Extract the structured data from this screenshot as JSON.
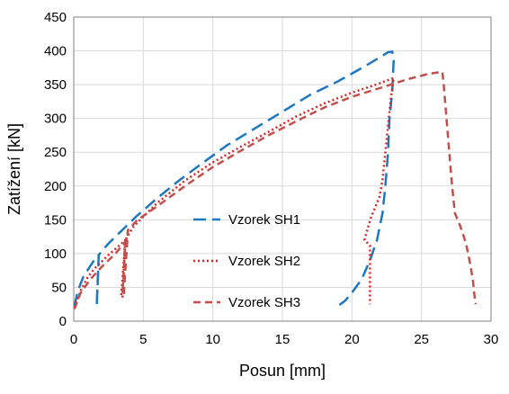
{
  "chart_data": {
    "type": "line",
    "title": "",
    "xlabel": "Posun [mm]",
    "ylabel": "Zatížení [kN]",
    "xlim": [
      0,
      30
    ],
    "ylim": [
      0,
      450
    ],
    "xticks": [
      0,
      5,
      10,
      15,
      20,
      25,
      30
    ],
    "yticks": [
      0,
      50,
      100,
      150,
      200,
      250,
      300,
      350,
      400,
      450
    ],
    "grid": true,
    "legend_position": "center-left",
    "series": [
      {
        "name": "Vzorek SH1",
        "color": "#1f77c0",
        "dash": "dashed-long",
        "points": [
          [
            0.05,
            22
          ],
          [
            0.3,
            45
          ],
          [
            0.7,
            66
          ],
          [
            1.2,
            82
          ],
          [
            1.65,
            96
          ],
          [
            1.8,
            98
          ],
          [
            1.75,
            70
          ],
          [
            1.7,
            45
          ],
          [
            1.65,
            22
          ],
          [
            1.65,
            22
          ],
          [
            1.8,
            98
          ],
          [
            2.5,
            115
          ],
          [
            3.5,
            135
          ],
          [
            4.5,
            155
          ],
          [
            6,
            182
          ],
          [
            7.5,
            207
          ],
          [
            9,
            230
          ],
          [
            11,
            260
          ],
          [
            13,
            285
          ],
          [
            15,
            310
          ],
          [
            17,
            335
          ],
          [
            19,
            355
          ],
          [
            21,
            378
          ],
          [
            22.6,
            398
          ],
          [
            22.9,
            399
          ],
          [
            23.0,
            385
          ],
          [
            22.9,
            340
          ],
          [
            22.7,
            300
          ],
          [
            22.6,
            250
          ],
          [
            22.4,
            200
          ],
          [
            22.2,
            160
          ],
          [
            21.8,
            120
          ],
          [
            21.3,
            90
          ],
          [
            20.7,
            62
          ],
          [
            20.0,
            42
          ],
          [
            19.5,
            30
          ],
          [
            19.1,
            24
          ]
        ]
      },
      {
        "name": "Vzorek SH2",
        "color": "#d62728",
        "dash": "dotted",
        "points": [
          [
            0.05,
            20
          ],
          [
            0.5,
            45
          ],
          [
            1.0,
            65
          ],
          [
            1.5,
            78
          ],
          [
            2.5,
            98
          ],
          [
            3.5,
            116
          ],
          [
            3.7,
            120
          ],
          [
            3.6,
            90
          ],
          [
            3.5,
            60
          ],
          [
            3.4,
            36
          ],
          [
            3.5,
            36
          ],
          [
            3.7,
            120
          ],
          [
            4.3,
            140
          ],
          [
            6,
            175
          ],
          [
            8,
            208
          ],
          [
            10,
            235
          ],
          [
            12,
            258
          ],
          [
            14,
            280
          ],
          [
            16,
            303
          ],
          [
            18,
            322
          ],
          [
            20,
            338
          ],
          [
            22,
            352
          ],
          [
            23.0,
            360
          ],
          [
            22.8,
            330
          ],
          [
            22.6,
            290
          ],
          [
            22.4,
            250
          ],
          [
            22.2,
            210
          ],
          [
            22.0,
            185
          ],
          [
            21.6,
            165
          ],
          [
            21.4,
            155
          ],
          [
            21.1,
            135
          ],
          [
            20.9,
            120
          ],
          [
            21.3,
            112
          ],
          [
            21.3,
            95
          ],
          [
            21.3,
            60
          ],
          [
            21.3,
            25
          ]
        ]
      },
      {
        "name": "Vzorek SH3",
        "color": "#c0504d",
        "dash": "dashed-short",
        "points": [
          [
            0.05,
            18
          ],
          [
            0.5,
            42
          ],
          [
            1.2,
            62
          ],
          [
            2.0,
            80
          ],
          [
            3.0,
            100
          ],
          [
            3.8,
            120
          ],
          [
            3.9,
            135
          ],
          [
            3.7,
            110
          ],
          [
            3.6,
            70
          ],
          [
            3.5,
            40
          ],
          [
            3.6,
            40
          ],
          [
            3.9,
            135
          ],
          [
            4.6,
            150
          ],
          [
            6,
            170
          ],
          [
            8,
            200
          ],
          [
            10,
            228
          ],
          [
            12,
            252
          ],
          [
            14,
            275
          ],
          [
            16,
            296
          ],
          [
            18,
            316
          ],
          [
            20,
            332
          ],
          [
            22,
            345
          ],
          [
            24,
            358
          ],
          [
            25.5,
            366
          ],
          [
            26.5,
            369
          ],
          [
            26.6,
            350
          ],
          [
            26.8,
            300
          ],
          [
            27.0,
            250
          ],
          [
            27.2,
            200
          ],
          [
            27.4,
            160
          ],
          [
            27.8,
            140
          ],
          [
            28.2,
            115
          ],
          [
            28.5,
            85
          ],
          [
            28.7,
            60
          ],
          [
            28.8,
            40
          ],
          [
            28.9,
            25
          ]
        ]
      }
    ]
  }
}
